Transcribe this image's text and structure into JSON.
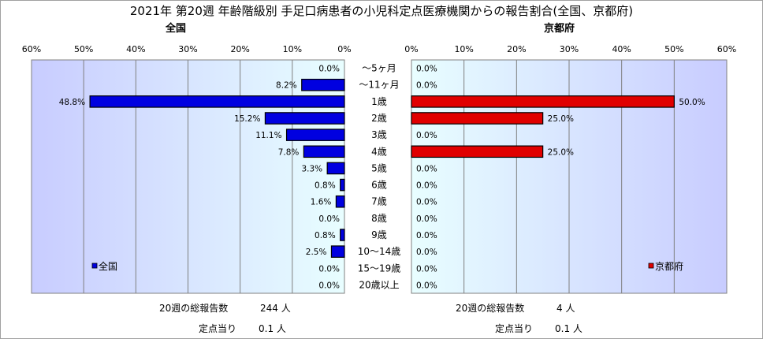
{
  "title": "2021年 第20週 年齢階級別 手足口病患者の小児科定点医療機関からの報告割合(全国、京都府)",
  "categories": [
    "～5ヶ月",
    "～11ヶ月",
    "1歳",
    "2歳",
    "3歳",
    "4歳",
    "5歳",
    "6歳",
    "7歳",
    "8歳",
    "9歳",
    "10～14歳",
    "15～19歳",
    "20歳以上"
  ],
  "chart_data": [
    {
      "type": "bar",
      "panel_label": "全国",
      "orientation": "horizontal-reversed",
      "axis_ticks": [
        "60%",
        "50%",
        "40%",
        "30%",
        "20%",
        "10%",
        "0%"
      ],
      "xlim": [
        0,
        60
      ],
      "series": [
        {
          "name": "全国",
          "color": "#0000e0",
          "values": [
            0.0,
            8.2,
            48.8,
            15.2,
            11.1,
            7.8,
            3.3,
            0.8,
            1.6,
            0.0,
            0.8,
            2.5,
            0.0,
            0.0
          ]
        }
      ],
      "value_labels": [
        "0.0%",
        "8.2%",
        "48.8%",
        "15.2%",
        "11.1%",
        "7.8%",
        "3.3%",
        "0.8%",
        "1.6%",
        "0.0%",
        "0.8%",
        "2.5%",
        "0.0%",
        "0.0%"
      ],
      "legend": "bottom-left",
      "grid": true
    },
    {
      "type": "bar",
      "panel_label": "京都府",
      "orientation": "horizontal",
      "axis_ticks": [
        "0%",
        "10%",
        "20%",
        "30%",
        "40%",
        "50%",
        "60%"
      ],
      "xlim": [
        0,
        60
      ],
      "series": [
        {
          "name": "京都府",
          "color": "#e00000",
          "values": [
            0.0,
            0.0,
            50.0,
            25.0,
            0.0,
            25.0,
            0.0,
            0.0,
            0.0,
            0.0,
            0.0,
            0.0,
            0.0,
            0.0
          ]
        }
      ],
      "value_labels": [
        "0.0%",
        "0.0%",
        "50.0%",
        "25.0%",
        "0.0%",
        "25.0%",
        "0.0%",
        "0.0%",
        "0.0%",
        "0.0%",
        "0.0%",
        "0.0%",
        "0.0%",
        "0.0%"
      ],
      "legend": "bottom-right",
      "grid": true
    }
  ],
  "footer": {
    "left": {
      "total_label": "20週の総報告数",
      "total_value": "244 人",
      "per_label": "定点当り",
      "per_value": "0.1 人"
    },
    "right": {
      "total_label": "20週の総報告数",
      "total_value": "4 人",
      "per_label": "定点当り",
      "per_value": "0.1 人"
    }
  }
}
